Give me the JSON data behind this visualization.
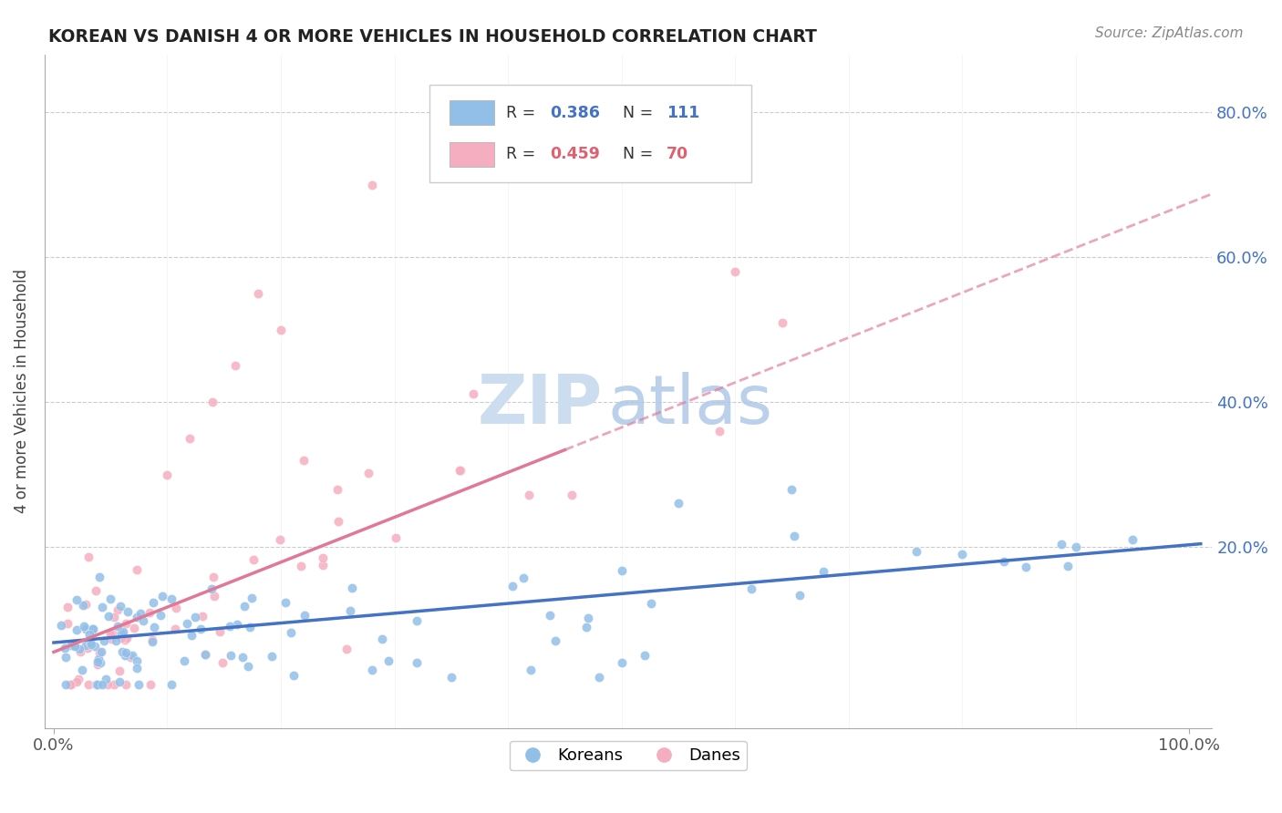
{
  "title": "KOREAN VS DANISH 4 OR MORE VEHICLES IN HOUSEHOLD CORRELATION CHART",
  "source": "Source: ZipAtlas.com",
  "ylabel": "4 or more Vehicles in Household",
  "korean_color": "#92bfe8",
  "danish_color": "#f5aec0",
  "korean_line_color": "#4472c4",
  "danish_line_color": "#e07898",
  "korean_R": 0.386,
  "danish_R": 0.459,
  "korean_N": 111,
  "danish_N": 70,
  "watermark_zip_color": "#ccddf0",
  "watermark_atlas_color": "#b0c8e8"
}
